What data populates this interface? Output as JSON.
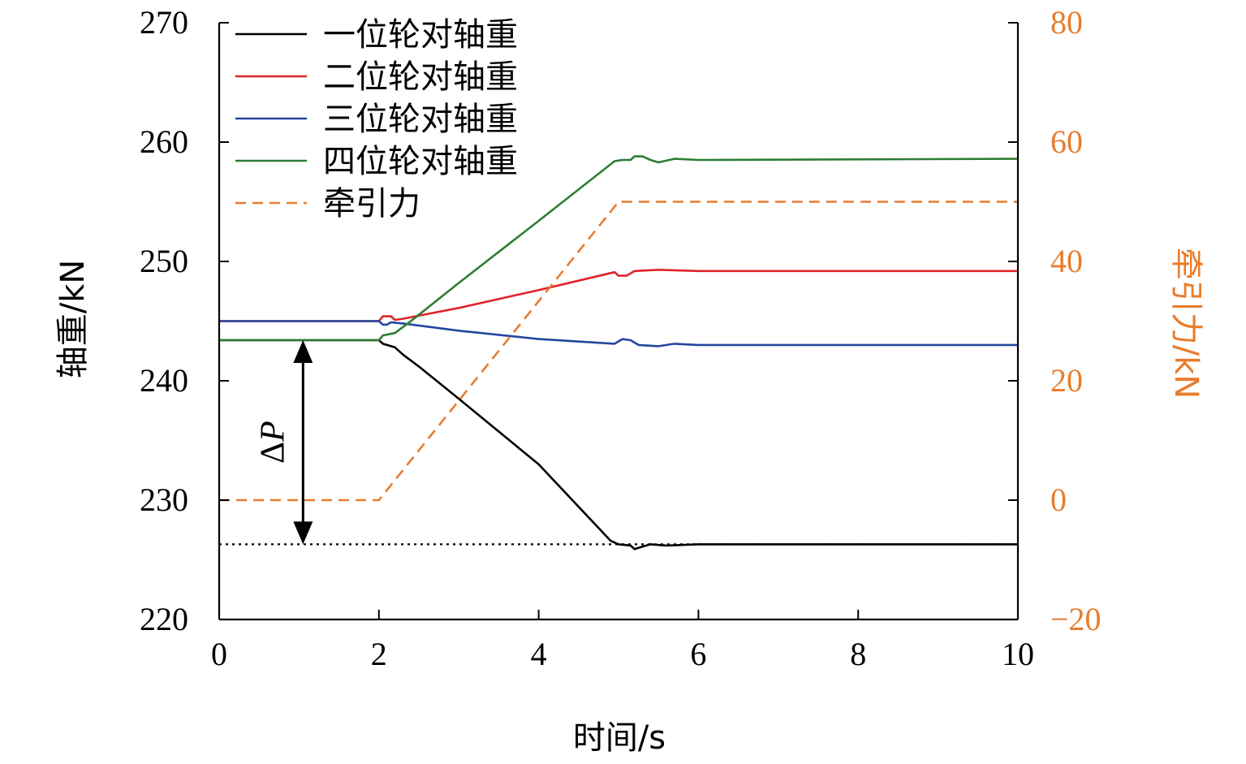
{
  "chart_data": {
    "type": "line",
    "xlabel": "时间/s",
    "ylabel": "轴重/kN",
    "y2label": "牵引力/kN",
    "xlim": [
      0,
      10
    ],
    "ylim": [
      220,
      270
    ],
    "y2lim": [
      -20,
      80
    ],
    "xticks": [
      "0",
      "2",
      "4",
      "6",
      "8",
      "10"
    ],
    "yticks": [
      "220",
      "230",
      "240",
      "250",
      "260",
      "270"
    ],
    "y2ticks": [
      "−20",
      "0",
      "20",
      "40",
      "60",
      "80"
    ],
    "legend_position": "top-left",
    "colors": {
      "axis": "#000000",
      "secondary_axis": "#E87C2C"
    },
    "series": [
      {
        "name": "一位轮对轴重",
        "axis": "left",
        "color": "#000000",
        "style": "solid",
        "points": [
          [
            0,
            243.4
          ],
          [
            2,
            243.4
          ],
          [
            2.05,
            243.1
          ],
          [
            2.2,
            242.8
          ],
          [
            2.3,
            242.2
          ],
          [
            2.5,
            241.2
          ],
          [
            3,
            238.5
          ],
          [
            4,
            233.0
          ],
          [
            4.9,
            226.6
          ],
          [
            5.0,
            226.3
          ],
          [
            5.15,
            226.2
          ],
          [
            5.2,
            225.9
          ],
          [
            5.3,
            226.1
          ],
          [
            5.4,
            226.3
          ],
          [
            5.6,
            226.2
          ],
          [
            6,
            226.3
          ],
          [
            10,
            226.3
          ]
        ]
      },
      {
        "name": "二位轮对轴重",
        "axis": "left",
        "color": "#E0242C",
        "style": "solid",
        "points": [
          [
            0,
            245.0
          ],
          [
            2,
            245.0
          ],
          [
            2.05,
            245.4
          ],
          [
            2.15,
            245.4
          ],
          [
            2.2,
            245.1
          ],
          [
            2.3,
            245.2
          ],
          [
            3,
            246.1
          ],
          [
            4,
            247.6
          ],
          [
            4.95,
            249.1
          ],
          [
            5.0,
            248.8
          ],
          [
            5.1,
            248.8
          ],
          [
            5.2,
            249.2
          ],
          [
            5.5,
            249.3
          ],
          [
            6,
            249.2
          ],
          [
            10,
            249.2
          ]
        ]
      },
      {
        "name": "三位轮对轴重",
        "axis": "left",
        "color": "#2346A0",
        "style": "solid",
        "points": [
          [
            0,
            245.0
          ],
          [
            2,
            245.0
          ],
          [
            2.05,
            244.7
          ],
          [
            2.1,
            244.7
          ],
          [
            2.15,
            244.9
          ],
          [
            2.3,
            244.8
          ],
          [
            3,
            244.2
          ],
          [
            4,
            243.5
          ],
          [
            4.95,
            243.1
          ],
          [
            5.05,
            243.5
          ],
          [
            5.15,
            243.4
          ],
          [
            5.25,
            243.0
          ],
          [
            5.5,
            242.9
          ],
          [
            5.7,
            243.1
          ],
          [
            6,
            243.0
          ],
          [
            10,
            243.0
          ]
        ]
      },
      {
        "name": "四位轮对轴重",
        "axis": "left",
        "color": "#2E7D32",
        "style": "solid",
        "points": [
          [
            0,
            243.4
          ],
          [
            2,
            243.4
          ],
          [
            2.05,
            243.8
          ],
          [
            2.2,
            244.0
          ],
          [
            2.4,
            245.0
          ],
          [
            3,
            248.2
          ],
          [
            4,
            253.4
          ],
          [
            4.95,
            258.4
          ],
          [
            5.05,
            258.5
          ],
          [
            5.15,
            258.5
          ],
          [
            5.2,
            258.8
          ],
          [
            5.3,
            258.8
          ],
          [
            5.4,
            258.5
          ],
          [
            5.5,
            258.3
          ],
          [
            5.7,
            258.6
          ],
          [
            6,
            258.5
          ],
          [
            10,
            258.6
          ]
        ]
      },
      {
        "name": "牵引力",
        "axis": "right",
        "color": "#E87C2C",
        "style": "dashed",
        "points": [
          [
            0,
            0
          ],
          [
            2,
            0
          ],
          [
            5,
            50
          ],
          [
            10,
            50
          ]
        ]
      }
    ],
    "annotations": {
      "delta_label": "ΔP",
      "delta_from": 243.4,
      "delta_to": 226.3,
      "delta_x": 1.05,
      "reference_line_y": 226.3
    }
  }
}
